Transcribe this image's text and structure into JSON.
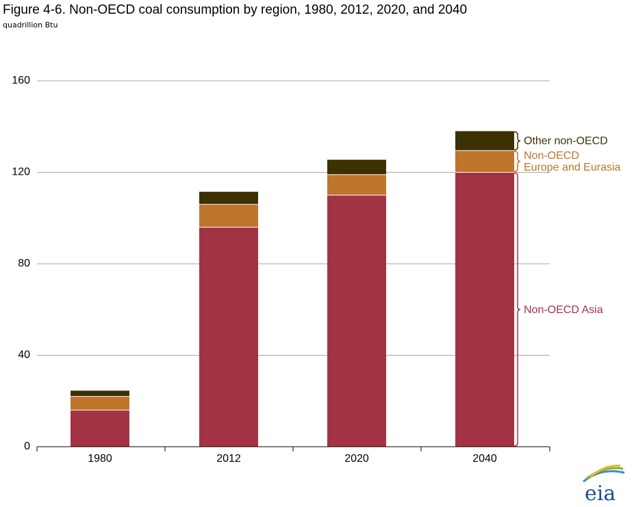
{
  "title": "Figure 4-6. Non-OECD coal consumption by region, 1980, 2012, 2020, and 2040",
  "subtitle": "quadrillion Btu",
  "logo_text": "eia",
  "chart_data": {
    "type": "bar",
    "stacked": true,
    "categories": [
      "1980",
      "2012",
      "2020",
      "2040"
    ],
    "series": [
      {
        "name": "Non-OECD Asia",
        "values": [
          16,
          96,
          110,
          120
        ],
        "color": "#a33343"
      },
      {
        "name": "Non-OECD Europe and Eurasia",
        "values": [
          6,
          10,
          9,
          9.5
        ],
        "color": "#bf742c"
      },
      {
        "name": "Other non-OECD",
        "values": [
          2.5,
          5.5,
          6.5,
          8.5
        ],
        "color": "#3b3103"
      }
    ],
    "annotations": [
      {
        "lines": [
          "Other non-OECD"
        ],
        "series_index": 2,
        "color": "#3b3103"
      },
      {
        "lines": [
          "Non-OECD",
          "Europe and Eurasia"
        ],
        "series_index": 1,
        "color": "#bf742c"
      },
      {
        "lines": [
          "Non-OECD Asia"
        ],
        "series_index": 0,
        "color": "#a33343"
      }
    ],
    "ylim": [
      0,
      160
    ],
    "yticks": [
      0,
      40,
      80,
      120,
      160
    ],
    "grid": true,
    "xlabel": "",
    "ylabel": ""
  }
}
